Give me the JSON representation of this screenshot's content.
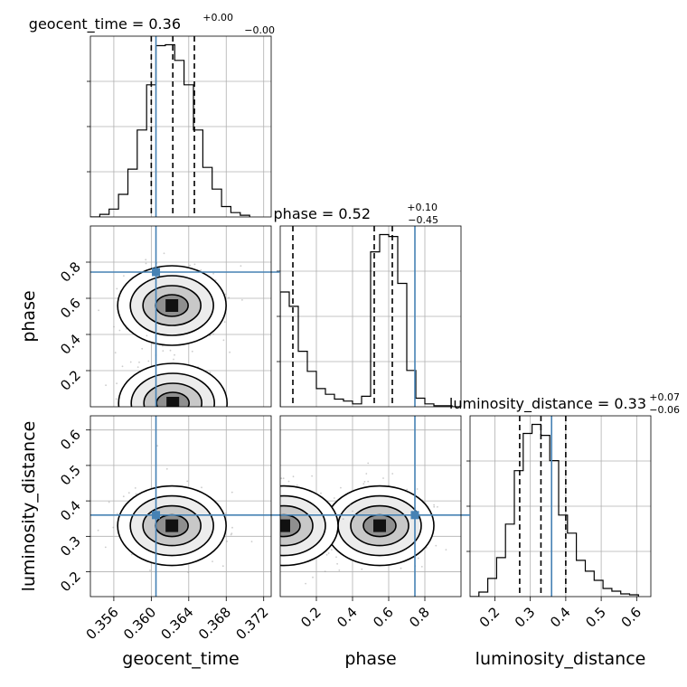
{
  "chart_data": {
    "type": "corner",
    "parameters": [
      "geocent_time",
      "phase",
      "luminosity_distance"
    ],
    "axis_labels": [
      "geocent_time",
      "phase",
      "luminosity_distance"
    ],
    "truths": [
      0.3605,
      0.745,
      0.36
    ],
    "truth_color": "#4682b4",
    "titles": [
      {
        "main": "geocent_time = 0.36",
        "sup": "+0.00",
        "sub": "−0.00"
      },
      {
        "main": "phase = 0.52",
        "sup": "+0.10",
        "sub": "−0.45"
      },
      {
        "main": "luminosity_distance = 0.33",
        "sup": "+0.07",
        "sub": "−0.06"
      }
    ],
    "ranges": [
      [
        0.3535,
        0.3728
      ],
      [
        0.0,
        1.0
      ],
      [
        0.13,
        0.64
      ]
    ],
    "ticks": [
      {
        "values": [
          0.356,
          0.36,
          0.364,
          0.368,
          0.372
        ],
        "labels": [
          "0.356",
          "0.360",
          "0.364",
          "0.368",
          "0.372"
        ]
      },
      {
        "values": [
          0.2,
          0.4,
          0.6,
          0.8
        ],
        "labels": [
          "0.2",
          "0.4",
          "0.6",
          "0.8"
        ]
      },
      {
        "values": [
          0.2,
          0.3,
          0.4,
          0.5,
          0.6
        ],
        "labels": [
          "0.2",
          "0.3",
          "0.4",
          "0.5",
          "0.6"
        ]
      }
    ],
    "quantiles": [
      [
        0.36,
        0.3623,
        0.3646
      ],
      [
        0.07,
        0.52,
        0.62
      ],
      [
        0.27,
        0.33,
        0.4
      ]
    ],
    "histograms": [
      {
        "param": "geocent_time",
        "bin_edges": [
          0.3535,
          0.3545,
          0.3555,
          0.3565,
          0.3575,
          0.3585,
          0.3595,
          0.3605,
          0.3615,
          0.3625,
          0.3635,
          0.3645,
          0.3655,
          0.3665,
          0.3675,
          0.3685,
          0.3695,
          0.3705
        ],
        "counts": [
          0,
          3,
          9,
          26,
          55,
          100,
          152,
          197,
          198,
          180,
          152,
          100,
          57,
          32,
          12,
          5,
          2
        ]
      },
      {
        "param": "phase",
        "bin_edges": [
          0.0,
          0.05,
          0.1,
          0.15,
          0.2,
          0.25,
          0.3,
          0.35,
          0.4,
          0.45,
          0.5,
          0.55,
          0.6,
          0.65,
          0.7,
          0.75,
          0.8,
          0.85,
          0.9,
          0.95,
          1.0
        ],
        "counts": [
          120,
          105,
          58,
          37,
          19,
          13,
          8,
          6,
          3,
          11,
          162,
          180,
          178,
          129,
          38,
          9,
          3,
          1,
          1,
          0
        ]
      },
      {
        "param": "luminosity_distance",
        "bin_edges": [
          0.13,
          0.155,
          0.18,
          0.205,
          0.23,
          0.255,
          0.28,
          0.305,
          0.33,
          0.355,
          0.38,
          0.405,
          0.43,
          0.455,
          0.48,
          0.505,
          0.53,
          0.555,
          0.58,
          0.605
        ],
        "counts": [
          0,
          5,
          20,
          43,
          80,
          139,
          180,
          190,
          178,
          150,
          90,
          70,
          40,
          28,
          18,
          9,
          6,
          3,
          2
        ]
      }
    ],
    "joint_modes": {
      "geocent_time_phase": [
        [
          0.3622,
          0.56
        ],
        [
          0.3623,
          0.02
        ]
      ],
      "geocent_time_luminosity_distance": [
        [
          0.3622,
          0.33
        ]
      ],
      "phase_luminosity_distance": [
        [
          0.55,
          0.33
        ],
        [
          0.02,
          0.33
        ]
      ]
    },
    "grid": true
  }
}
